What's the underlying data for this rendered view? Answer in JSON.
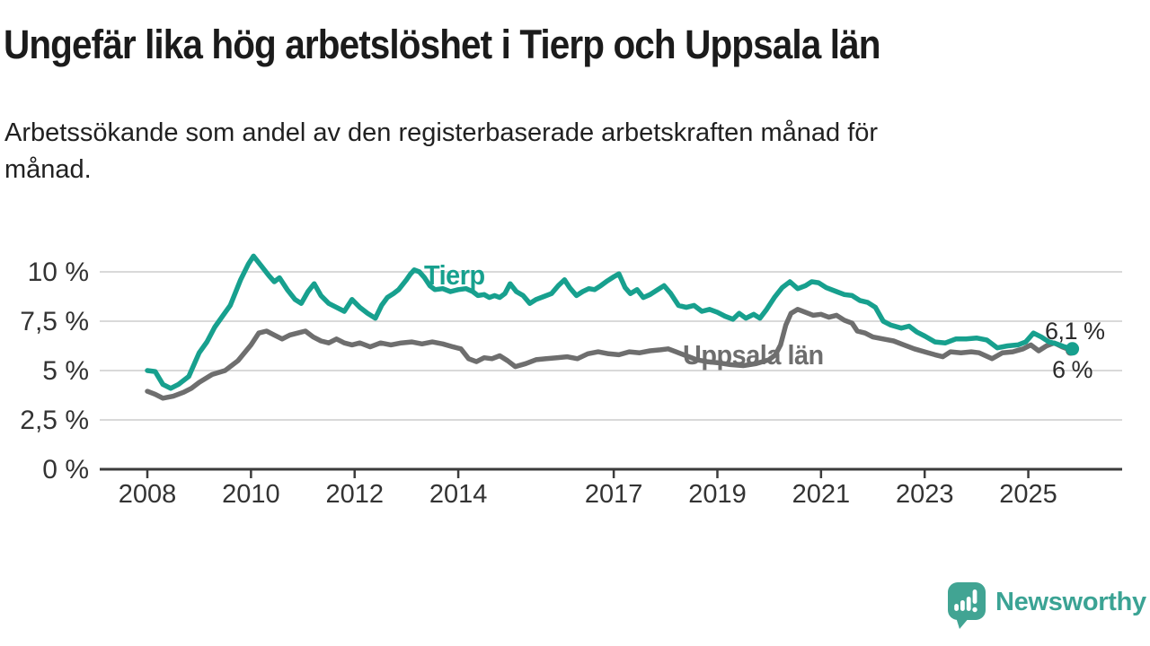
{
  "header": {
    "title": "Ungefär lika hög arbetslöshet i Tierp och Uppsala län",
    "subtitle_lines": [
      "Arbetssökande som andel av den registerbaserade arbetskraften månad för",
      "månad."
    ]
  },
  "colors": {
    "tierp": "#17a08e",
    "uppsala": "#6e6e6e",
    "gridline": "#d9d9d9",
    "axis_line": "#3c3c3c",
    "axis_text": "#333333",
    "end_label_text": "#2b2b2b",
    "logo_teal": "#3ba394"
  },
  "logo": {
    "text": "Newsworthy",
    "icon": "speech-bubble-bar-chart-exclamation"
  },
  "chart_data": {
    "type": "line",
    "title": "Ungefär lika hög arbetslöshet i Tierp och Uppsala län",
    "subtitle": "Arbetssökande som andel av den registerbaserade arbetskraften månad för månad.",
    "xlabel": "",
    "ylabel": "",
    "unit": "%",
    "grid": true,
    "legend_position": "inline-labels",
    "xlim": [
      2007.9,
      2026.2
    ],
    "ylim": [
      0,
      11.6
    ],
    "yticks": [
      {
        "value": 0,
        "label": "0 %"
      },
      {
        "value": 2.5,
        "label": "2,5 %"
      },
      {
        "value": 5,
        "label": "5 %"
      },
      {
        "value": 7.5,
        "label": "7,5 %"
      },
      {
        "value": 10,
        "label": "10 %"
      }
    ],
    "xticks": [
      {
        "value": 2008,
        "label": "2008"
      },
      {
        "value": 2010,
        "label": "2010"
      },
      {
        "value": 2012,
        "label": "2012"
      },
      {
        "value": 2014,
        "label": "2014"
      },
      {
        "value": 2017,
        "label": "2017"
      },
      {
        "value": 2019,
        "label": "2019"
      },
      {
        "value": 2021,
        "label": "2021"
      },
      {
        "value": 2023,
        "label": "2023"
      },
      {
        "value": 2025,
        "label": "2025"
      }
    ],
    "series": [
      {
        "name": "Tierp",
        "color": "#17a08e",
        "end_label": "6,1 %",
        "final_value": 6.1,
        "points": [
          [
            2008.0,
            5.0
          ],
          [
            2008.15,
            4.95
          ],
          [
            2008.3,
            4.3
          ],
          [
            2008.45,
            4.1
          ],
          [
            2008.6,
            4.3
          ],
          [
            2008.8,
            4.7
          ],
          [
            2009.0,
            5.9
          ],
          [
            2009.15,
            6.45
          ],
          [
            2009.3,
            7.2
          ],
          [
            2009.45,
            7.75
          ],
          [
            2009.6,
            8.3
          ],
          [
            2009.8,
            9.6
          ],
          [
            2009.95,
            10.4
          ],
          [
            2010.05,
            10.8
          ],
          [
            2010.2,
            10.3
          ],
          [
            2010.35,
            9.8
          ],
          [
            2010.45,
            9.5
          ],
          [
            2010.55,
            9.7
          ],
          [
            2010.7,
            9.1
          ],
          [
            2010.85,
            8.6
          ],
          [
            2010.97,
            8.4
          ],
          [
            2011.1,
            9.0
          ],
          [
            2011.22,
            9.4
          ],
          [
            2011.35,
            8.8
          ],
          [
            2011.5,
            8.4
          ],
          [
            2011.65,
            8.2
          ],
          [
            2011.8,
            8.0
          ],
          [
            2011.95,
            8.6
          ],
          [
            2012.1,
            8.2
          ],
          [
            2012.25,
            7.9
          ],
          [
            2012.4,
            7.65
          ],
          [
            2012.52,
            8.3
          ],
          [
            2012.63,
            8.7
          ],
          [
            2012.75,
            8.9
          ],
          [
            2012.85,
            9.1
          ],
          [
            2013.0,
            9.6
          ],
          [
            2013.08,
            9.9
          ],
          [
            2013.15,
            10.1
          ],
          [
            2013.25,
            10.0
          ],
          [
            2013.35,
            9.7
          ],
          [
            2013.45,
            9.3
          ],
          [
            2013.55,
            9.1
          ],
          [
            2013.7,
            9.15
          ],
          [
            2013.85,
            9.0
          ],
          [
            2014.0,
            9.1
          ],
          [
            2014.15,
            9.15
          ],
          [
            2014.28,
            9.0
          ],
          [
            2014.38,
            8.8
          ],
          [
            2014.5,
            8.85
          ],
          [
            2014.6,
            8.7
          ],
          [
            2014.7,
            8.8
          ],
          [
            2014.8,
            8.7
          ],
          [
            2014.9,
            8.9
          ],
          [
            2015.0,
            9.4
          ],
          [
            2015.12,
            9.0
          ],
          [
            2015.25,
            8.8
          ],
          [
            2015.38,
            8.4
          ],
          [
            2015.5,
            8.6
          ],
          [
            2015.65,
            8.75
          ],
          [
            2015.8,
            8.9
          ],
          [
            2015.93,
            9.3
          ],
          [
            2016.05,
            9.6
          ],
          [
            2016.15,
            9.2
          ],
          [
            2016.28,
            8.8
          ],
          [
            2016.4,
            9.0
          ],
          [
            2016.52,
            9.15
          ],
          [
            2016.63,
            9.1
          ],
          [
            2016.75,
            9.3
          ],
          [
            2016.88,
            9.55
          ],
          [
            2017.0,
            9.75
          ],
          [
            2017.1,
            9.9
          ],
          [
            2017.22,
            9.2
          ],
          [
            2017.32,
            8.9
          ],
          [
            2017.45,
            9.1
          ],
          [
            2017.57,
            8.7
          ],
          [
            2017.7,
            8.85
          ],
          [
            2017.85,
            9.1
          ],
          [
            2017.97,
            9.3
          ],
          [
            2018.1,
            8.9
          ],
          [
            2018.25,
            8.3
          ],
          [
            2018.4,
            8.2
          ],
          [
            2018.55,
            8.3
          ],
          [
            2018.7,
            8.0
          ],
          [
            2018.85,
            8.1
          ],
          [
            2019.0,
            7.95
          ],
          [
            2019.15,
            7.75
          ],
          [
            2019.3,
            7.6
          ],
          [
            2019.42,
            7.9
          ],
          [
            2019.55,
            7.65
          ],
          [
            2019.7,
            7.85
          ],
          [
            2019.82,
            7.65
          ],
          [
            2019.95,
            8.1
          ],
          [
            2020.1,
            8.7
          ],
          [
            2020.25,
            9.2
          ],
          [
            2020.4,
            9.5
          ],
          [
            2020.55,
            9.15
          ],
          [
            2020.7,
            9.3
          ],
          [
            2020.82,
            9.5
          ],
          [
            2020.95,
            9.45
          ],
          [
            2021.1,
            9.2
          ],
          [
            2021.3,
            9.0
          ],
          [
            2021.45,
            8.85
          ],
          [
            2021.6,
            8.8
          ],
          [
            2021.75,
            8.55
          ],
          [
            2021.9,
            8.45
          ],
          [
            2022.05,
            8.2
          ],
          [
            2022.2,
            7.5
          ],
          [
            2022.35,
            7.3
          ],
          [
            2022.55,
            7.15
          ],
          [
            2022.7,
            7.25
          ],
          [
            2022.85,
            6.95
          ],
          [
            2023.0,
            6.75
          ],
          [
            2023.2,
            6.45
          ],
          [
            2023.4,
            6.4
          ],
          [
            2023.6,
            6.6
          ],
          [
            2023.8,
            6.6
          ],
          [
            2024.0,
            6.65
          ],
          [
            2024.2,
            6.55
          ],
          [
            2024.4,
            6.15
          ],
          [
            2024.6,
            6.25
          ],
          [
            2024.8,
            6.3
          ],
          [
            2024.95,
            6.45
          ],
          [
            2025.1,
            6.9
          ],
          [
            2025.25,
            6.7
          ],
          [
            2025.4,
            6.45
          ],
          [
            2025.55,
            6.35
          ],
          [
            2025.7,
            6.2
          ],
          [
            2025.85,
            6.1
          ]
        ]
      },
      {
        "name": "Uppsala län",
        "color": "#6e6e6e",
        "end_label": "6 %",
        "final_value": 6.0,
        "points": [
          [
            2008.0,
            3.95
          ],
          [
            2008.15,
            3.8
          ],
          [
            2008.3,
            3.6
          ],
          [
            2008.5,
            3.7
          ],
          [
            2008.7,
            3.9
          ],
          [
            2008.85,
            4.1
          ],
          [
            2009.0,
            4.4
          ],
          [
            2009.25,
            4.8
          ],
          [
            2009.5,
            5.0
          ],
          [
            2009.75,
            5.5
          ],
          [
            2010.0,
            6.3
          ],
          [
            2010.15,
            6.9
          ],
          [
            2010.3,
            7.0
          ],
          [
            2010.45,
            6.8
          ],
          [
            2010.6,
            6.6
          ],
          [
            2010.75,
            6.8
          ],
          [
            2010.9,
            6.9
          ],
          [
            2011.05,
            7.0
          ],
          [
            2011.2,
            6.7
          ],
          [
            2011.35,
            6.5
          ],
          [
            2011.5,
            6.4
          ],
          [
            2011.65,
            6.6
          ],
          [
            2011.8,
            6.4
          ],
          [
            2011.95,
            6.3
          ],
          [
            2012.1,
            6.4
          ],
          [
            2012.3,
            6.2
          ],
          [
            2012.5,
            6.4
          ],
          [
            2012.7,
            6.3
          ],
          [
            2012.9,
            6.4
          ],
          [
            2013.1,
            6.45
          ],
          [
            2013.3,
            6.35
          ],
          [
            2013.5,
            6.45
          ],
          [
            2013.7,
            6.35
          ],
          [
            2013.9,
            6.2
          ],
          [
            2014.05,
            6.1
          ],
          [
            2014.2,
            5.6
          ],
          [
            2014.35,
            5.45
          ],
          [
            2014.5,
            5.65
          ],
          [
            2014.65,
            5.6
          ],
          [
            2014.8,
            5.75
          ],
          [
            2014.95,
            5.5
          ],
          [
            2015.1,
            5.2
          ],
          [
            2015.3,
            5.35
          ],
          [
            2015.5,
            5.55
          ],
          [
            2015.7,
            5.6
          ],
          [
            2015.9,
            5.65
          ],
          [
            2016.1,
            5.7
          ],
          [
            2016.3,
            5.6
          ],
          [
            2016.5,
            5.85
          ],
          [
            2016.7,
            5.95
          ],
          [
            2016.9,
            5.85
          ],
          [
            2017.1,
            5.8
          ],
          [
            2017.3,
            5.95
          ],
          [
            2017.5,
            5.9
          ],
          [
            2017.7,
            6.0
          ],
          [
            2017.9,
            6.05
          ],
          [
            2018.05,
            6.1
          ],
          [
            2018.2,
            5.95
          ],
          [
            2018.4,
            5.75
          ],
          [
            2018.6,
            5.55
          ],
          [
            2018.8,
            5.45
          ],
          [
            2019.0,
            5.4
          ],
          [
            2019.25,
            5.3
          ],
          [
            2019.5,
            5.25
          ],
          [
            2019.75,
            5.35
          ],
          [
            2020.0,
            5.55
          ],
          [
            2020.12,
            5.8
          ],
          [
            2020.22,
            6.3
          ],
          [
            2020.32,
            7.3
          ],
          [
            2020.42,
            7.9
          ],
          [
            2020.55,
            8.1
          ],
          [
            2020.7,
            7.95
          ],
          [
            2020.85,
            7.8
          ],
          [
            2021.0,
            7.85
          ],
          [
            2021.15,
            7.7
          ],
          [
            2021.3,
            7.8
          ],
          [
            2021.45,
            7.55
          ],
          [
            2021.6,
            7.4
          ],
          [
            2021.7,
            7.0
          ],
          [
            2021.85,
            6.9
          ],
          [
            2022.0,
            6.7
          ],
          [
            2022.2,
            6.6
          ],
          [
            2022.4,
            6.5
          ],
          [
            2022.6,
            6.3
          ],
          [
            2022.8,
            6.1
          ],
          [
            2023.0,
            5.95
          ],
          [
            2023.2,
            5.8
          ],
          [
            2023.35,
            5.7
          ],
          [
            2023.5,
            5.95
          ],
          [
            2023.7,
            5.9
          ],
          [
            2023.9,
            5.95
          ],
          [
            2024.05,
            5.9
          ],
          [
            2024.3,
            5.6
          ],
          [
            2024.5,
            5.9
          ],
          [
            2024.7,
            5.95
          ],
          [
            2024.9,
            6.1
          ],
          [
            2025.05,
            6.3
          ],
          [
            2025.2,
            6.0
          ],
          [
            2025.35,
            6.25
          ],
          [
            2025.5,
            6.4
          ],
          [
            2025.65,
            6.2
          ],
          [
            2025.85,
            6.0
          ]
        ]
      }
    ]
  }
}
